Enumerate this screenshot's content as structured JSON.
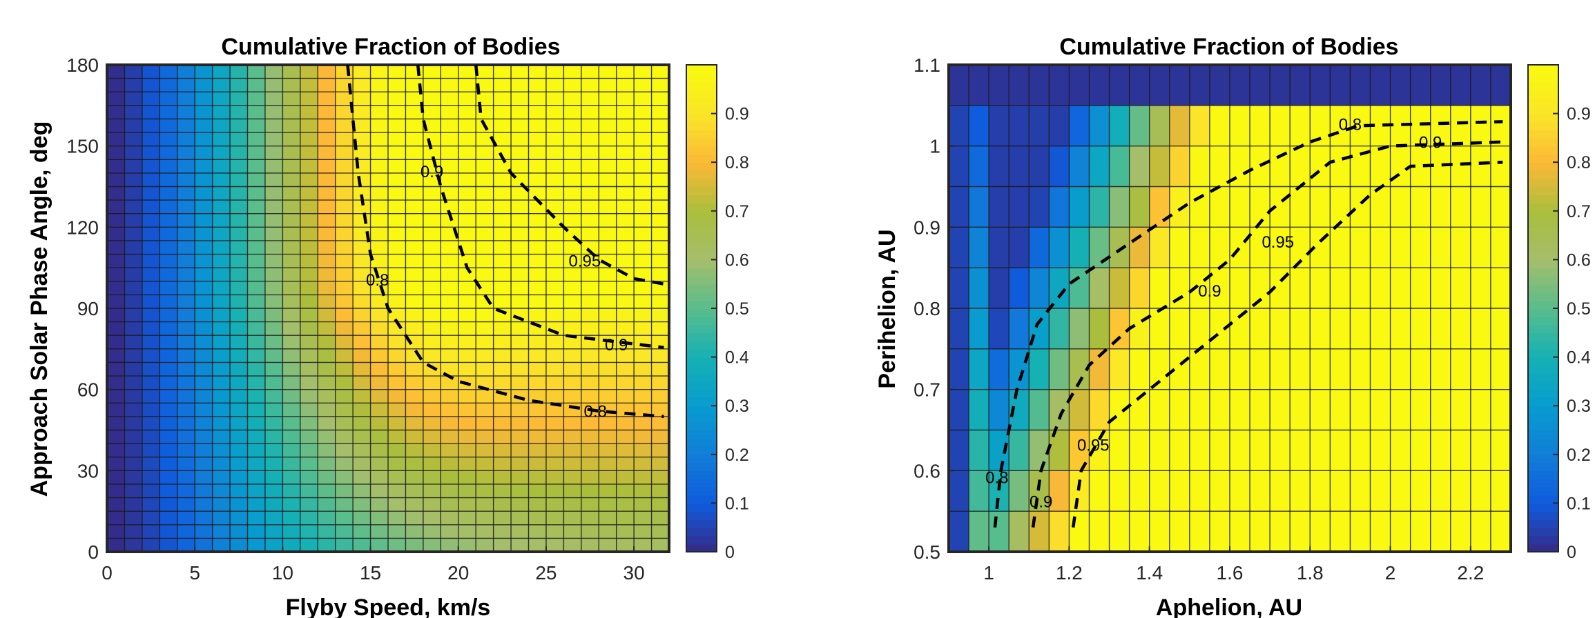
{
  "chart_data": [
    {
      "type": "heatmap",
      "title": "Cumulative Fraction of Bodies",
      "xlabel": "Flyby Speed, km/s",
      "ylabel": "Approach Solar Phase Angle, deg",
      "xlim": [
        0,
        32
      ],
      "ylim": [
        0,
        180
      ],
      "xticks": [
        "0",
        "5",
        "10",
        "15",
        "20",
        "25",
        "30"
      ],
      "xtick_values": [
        0,
        5,
        10,
        15,
        20,
        25,
        30
      ],
      "yticks": [
        "0",
        "30",
        "60",
        "90",
        "120",
        "150",
        "180"
      ],
      "ytick_values": [
        0,
        30,
        60,
        90,
        120,
        150,
        180
      ],
      "grid_cols": 32,
      "grid_rows": 36,
      "colorbar": {
        "min": 0,
        "max": 1,
        "ticks": [
          "0",
          "0.1",
          "0.2",
          "0.3",
          "0.4",
          "0.5",
          "0.6",
          "0.7",
          "0.8",
          "0.9"
        ],
        "tick_values": [
          0,
          0.1,
          0.2,
          0.3,
          0.4,
          0.5,
          0.6,
          0.7,
          0.8,
          0.9
        ]
      },
      "surface": {
        "description": "fraction rises with flyby speed (near 0 at 0 km/s) and with phase angle; peaks orange near 15-25 km/s at high angles, yellow beyond"
      },
      "contours": [
        {
          "level": "0.8",
          "points": [
            [
              13.7,
              180
            ],
            [
              14.0,
              160
            ],
            [
              14.3,
              140
            ],
            [
              15.0,
              110
            ],
            [
              16.0,
              90
            ],
            [
              18.0,
              70
            ],
            [
              20.0,
              63
            ],
            [
              24.0,
              56
            ],
            [
              28.0,
              52
            ],
            [
              31.7,
              50
            ]
          ],
          "label": {
            "at": [
              27.8,
              51.5
            ]
          }
        },
        {
          "level": "0.8",
          "points": [],
          "label": {
            "at": [
              15.4,
              100
            ]
          }
        },
        {
          "level": "0.9",
          "points": [
            [
              17.7,
              180
            ],
            [
              18.0,
              160
            ],
            [
              19.0,
              135
            ],
            [
              20.5,
              105
            ],
            [
              22.0,
              90
            ],
            [
              26.0,
              80
            ],
            [
              31.7,
              75.5
            ]
          ],
          "label": {
            "at": [
              29.0,
              76
            ],
            "at2": [
              18.5,
              140
            ]
          }
        },
        {
          "level": "0.95",
          "points": [
            [
              21.0,
              180
            ],
            [
              21.3,
              160
            ],
            [
              23.0,
              140
            ],
            [
              26.0,
              120
            ],
            [
              28.0,
              108
            ],
            [
              30.0,
              101
            ],
            [
              31.7,
              99
            ]
          ],
          "label": {
            "at": [
              27.2,
              107
            ]
          }
        }
      ]
    },
    {
      "type": "heatmap",
      "title": "Cumulative Fraction of Bodies",
      "xlabel": "Aphelion, AU",
      "ylabel": "Perihelion, AU",
      "xlim": [
        0.9,
        2.3
      ],
      "ylim": [
        0.5,
        1.1
      ],
      "xticks": [
        "1",
        "1.2",
        "1.4",
        "1.6",
        "1.8",
        "2",
        "2.2"
      ],
      "xtick_values": [
        1,
        1.2,
        1.4,
        1.6,
        1.8,
        2,
        2.2
      ],
      "yticks": [
        "0.5",
        "0.6",
        "0.7",
        "0.8",
        "0.9",
        "1",
        "1.1"
      ],
      "ytick_values": [
        0.5,
        0.6,
        0.7,
        0.8,
        0.9,
        1,
        1.1
      ],
      "grid_cols": 28,
      "grid_rows": 12,
      "colorbar": {
        "min": 0,
        "max": 1,
        "ticks": [
          "0",
          "0.1",
          "0.2",
          "0.3",
          "0.4",
          "0.5",
          "0.6",
          "0.7",
          "0.8",
          "0.9"
        ],
        "tick_values": [
          0,
          0.1,
          0.2,
          0.3,
          0.4,
          0.5,
          0.6,
          0.7,
          0.8,
          0.9
        ]
      },
      "surface": {
        "description": "top row near 0; low aphelion columns blue-green; fraction increases toward large aphelion and low perihelion (yellow)"
      },
      "contours": [
        {
          "level": "0.8",
          "points": [
            [
              1.015,
              0.53
            ],
            [
              1.03,
              0.6
            ],
            [
              1.07,
              0.7
            ],
            [
              1.12,
              0.78
            ],
            [
              1.2,
              0.83
            ],
            [
              1.35,
              0.88
            ],
            [
              1.5,
              0.93
            ],
            [
              1.65,
              0.97
            ],
            [
              1.8,
              1.005
            ],
            [
              1.92,
              1.025
            ],
            [
              2.28,
              1.03
            ]
          ],
          "label": {
            "at": [
              1.02,
              0.59
            ],
            "at2": [
              1.9,
              1.025
            ]
          }
        },
        {
          "level": "0.9",
          "points": [
            [
              1.11,
              0.53
            ],
            [
              1.13,
              0.6
            ],
            [
              1.18,
              0.67
            ],
            [
              1.25,
              0.73
            ],
            [
              1.35,
              0.775
            ],
            [
              1.5,
              0.82
            ],
            [
              1.6,
              0.86
            ],
            [
              1.7,
              0.92
            ],
            [
              1.85,
              0.98
            ],
            [
              2.0,
              1.0
            ],
            [
              2.28,
              1.005
            ]
          ],
          "label": {
            "at": [
              1.13,
              0.56
            ],
            "at2": [
              1.55,
              0.82
            ],
            "at3": [
              2.1,
              1.003
            ]
          }
        },
        {
          "level": "0.95",
          "points": [
            [
              1.21,
              0.53
            ],
            [
              1.23,
              0.6
            ],
            [
              1.3,
              0.66
            ],
            [
              1.4,
              0.7
            ],
            [
              1.55,
              0.76
            ],
            [
              1.7,
              0.82
            ],
            [
              1.82,
              0.88
            ],
            [
              1.95,
              0.94
            ],
            [
              2.05,
              0.975
            ],
            [
              2.28,
              0.98
            ]
          ],
          "label": {
            "at": [
              1.26,
              0.63
            ],
            "at2": [
              1.72,
              0.88
            ]
          }
        }
      ]
    }
  ]
}
